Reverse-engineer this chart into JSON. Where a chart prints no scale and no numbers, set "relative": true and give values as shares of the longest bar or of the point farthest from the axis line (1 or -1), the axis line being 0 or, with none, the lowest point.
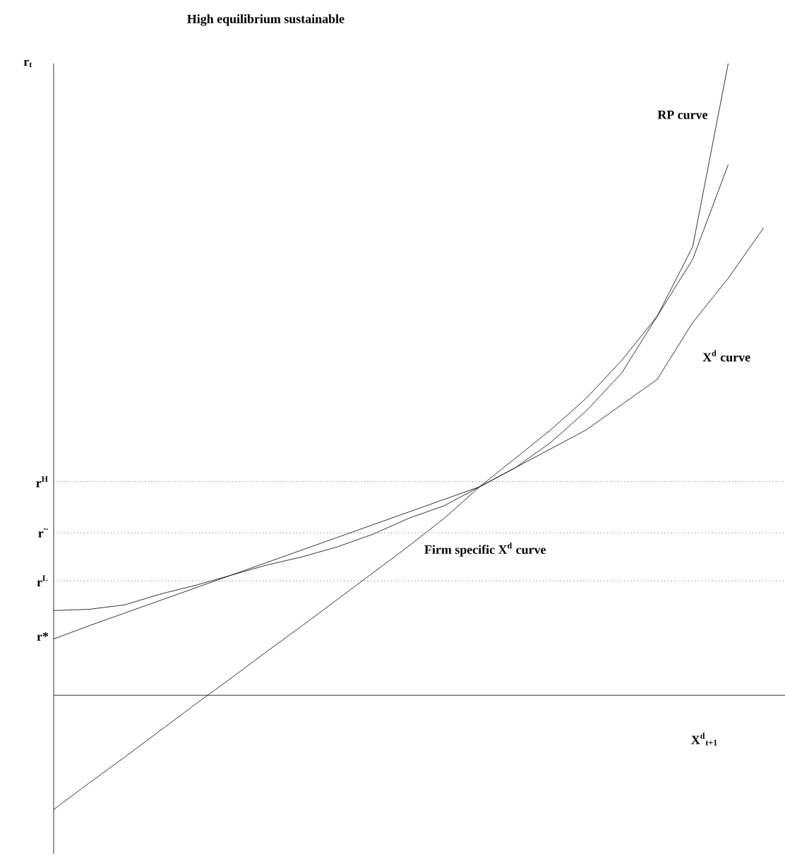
{
  "chart_data": {
    "type": "line",
    "relative": true,
    "title": "High equilibrium sustainable",
    "xlabel": "X$^{d}$$_{t+1}$",
    "ylabel": "r$_{t}$",
    "categories": [
      null,
      null,
      null,
      null,
      null,
      null,
      null,
      null,
      null,
      null,
      null,
      null,
      null,
      null,
      null,
      null,
      null,
      null,
      null,
      null,
      null
    ],
    "series": [
      {
        "name": "RP curve",
        "color": "#000000",
        "values": [
          0.134,
          0.136,
          0.143,
          0.16,
          0.174,
          0.19,
          0.206,
          0.219,
          0.235,
          0.255,
          0.28,
          0.3,
          0.33,
          0.36,
          0.4,
          0.45,
          0.51,
          0.6,
          0.71,
          1.0,
          null
        ]
      },
      {
        "name": "X$^{d}$ curve",
        "color": "#000000",
        "values": [
          0.089,
          0.11,
          0.13,
          0.15,
          0.17,
          0.19,
          0.21,
          0.23,
          0.25,
          0.27,
          0.29,
          0.31,
          0.33,
          0.36,
          0.39,
          0.42,
          0.46,
          0.5,
          0.59,
          0.66,
          0.74
        ]
      },
      {
        "name": "Firm specific X$^{d}$ curve",
        "color": "#000000",
        "values": [
          -0.181,
          -0.139,
          -0.098,
          -0.056,
          -0.014,
          0.027,
          0.069,
          0.11,
          0.152,
          0.194,
          0.236,
          0.28,
          0.33,
          0.375,
          0.42,
          0.47,
          0.53,
          0.6,
          0.69,
          0.84,
          null
        ]
      }
    ],
    "ref_lines": [
      {
        "axis": "y",
        "value": 0.338,
        "label": "r$^{H}$",
        "line_style": "dotted"
      },
      {
        "axis": "y",
        "value": 0.257,
        "label": "r$^{~}$",
        "line_style": "dotted"
      },
      {
        "axis": "y",
        "value": 0.181,
        "label": "r$^{L}$",
        "line_style": "dotted"
      }
    ],
    "annotations": [
      "r*"
    ],
    "line_style": "solid"
  }
}
